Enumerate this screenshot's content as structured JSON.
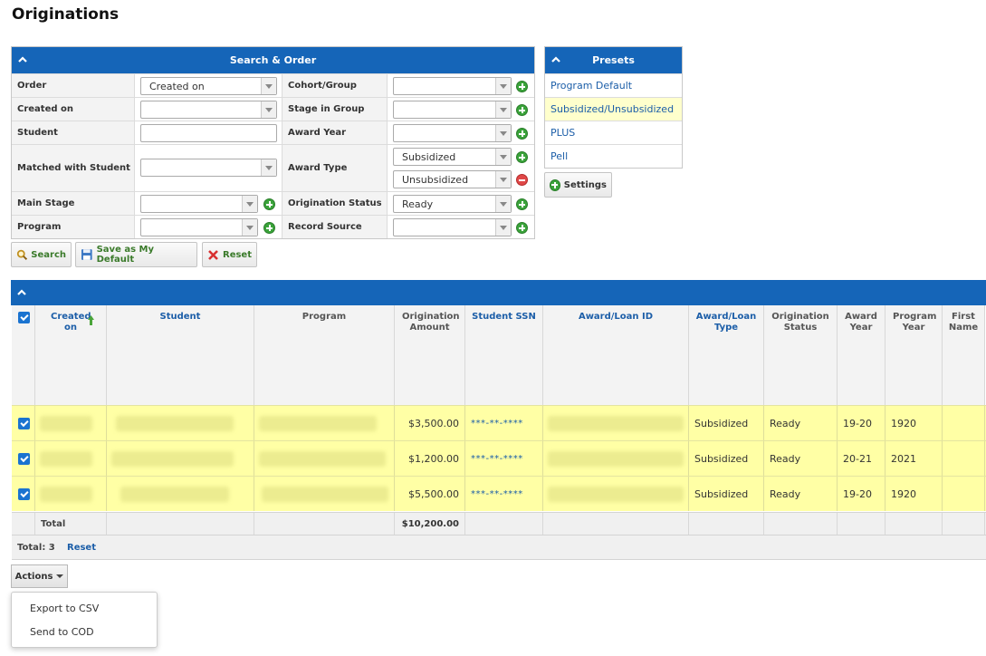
{
  "page": {
    "title": "Originations"
  },
  "search": {
    "title": "Search & Order",
    "labels": {
      "order": "Order",
      "created_on": "Created on",
      "student": "Student",
      "matched_with_student": "Matched with Student",
      "main_stage": "Main Stage",
      "program": "Program",
      "cohort_group": "Cohort/Group",
      "stage_in_group": "Stage in Group",
      "award_year": "Award Year",
      "award_type": "Award Type",
      "origination_status": "Origination Status",
      "record_source": "Record Source"
    },
    "values": {
      "order": "Created on",
      "created_on": "",
      "student": "",
      "matched_with_student": "",
      "main_stage": "",
      "program": "",
      "cohort_group": "",
      "stage_in_group": "",
      "award_year": "",
      "award_type_1": "Subsidized",
      "award_type_2": "Unsubsidized",
      "origination_status": "Ready",
      "record_source": ""
    },
    "buttons": {
      "search": "Search",
      "save_default": "Save as My Default",
      "reset": "Reset"
    }
  },
  "presets": {
    "title": "Presets",
    "items": [
      "Program Default",
      "Subsidized/Unsubsidized",
      "PLUS",
      "Pell"
    ],
    "active_index": 1,
    "settings_label": "Settings"
  },
  "grid": {
    "columns": [
      "Created on",
      "Student",
      "Program",
      "Origination Amount",
      "Student SSN",
      "Award/Loan ID",
      "Award/Loan Type",
      "Origination Status",
      "Award Year",
      "Program Year",
      "First Name"
    ],
    "rows": [
      {
        "amount": "$3,500.00",
        "ssn": "***-**-****",
        "loan_type": "Subsidized",
        "status": "Ready",
        "award_year": "19-20",
        "program_year": "1920"
      },
      {
        "amount": "$1,200.00",
        "ssn": "***-**-****",
        "loan_type": "Subsidized",
        "status": "Ready",
        "award_year": "20-21",
        "program_year": "2021"
      },
      {
        "amount": "$5,500.00",
        "ssn": "***-**-****",
        "loan_type": "Subsidized",
        "status": "Ready",
        "award_year": "19-20",
        "program_year": "1920"
      }
    ],
    "total_label": "Total",
    "total_amount": "$10,200.00",
    "footer": {
      "count_label": "Total: 3",
      "reset_label": "Reset"
    }
  },
  "actions": {
    "label": "Actions",
    "items": [
      "Export to CSV",
      "Send to COD"
    ]
  },
  "colors": {
    "header_blue": "#1565b8",
    "row_highlight": "#ffffa5",
    "link_blue": "#1c5ea8",
    "add_green": "#3aa33a",
    "remove_red": "#e04848"
  }
}
